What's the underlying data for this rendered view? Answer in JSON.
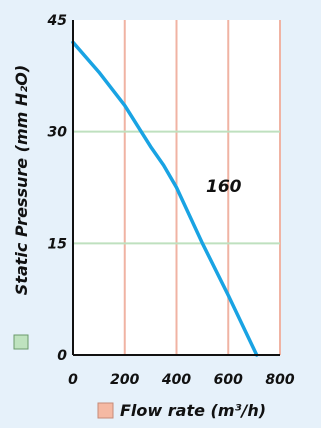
{
  "chart_data": {
    "type": "line",
    "xlabel": "Flow rate (m³/h)",
    "ylabel": "Static Pressure (mm H₂O)",
    "xlim": [
      0,
      800
    ],
    "ylim": [
      0,
      45
    ],
    "x_ticks": [
      "0",
      "200",
      "400",
      "600",
      "800"
    ],
    "y_ticks": [
      "0",
      "15",
      "30",
      "45"
    ],
    "grid": true,
    "colors": {
      "line": "#19a3e3",
      "x_grid": "#f0b3a3",
      "y_grid": "#bfe0bf",
      "x_legend_swatch": "#f5b9a3",
      "y_legend_swatch": "#bfe3bf",
      "background": "#e6f1fa",
      "plot_background": "#ffffff"
    },
    "series": [
      {
        "name": "160",
        "x": [
          0,
          100,
          200,
          300,
          350,
          400,
          500,
          600,
          710
        ],
        "y": [
          42,
          38,
          33.5,
          28,
          25.5,
          22.5,
          15,
          8,
          0
        ]
      }
    ]
  }
}
